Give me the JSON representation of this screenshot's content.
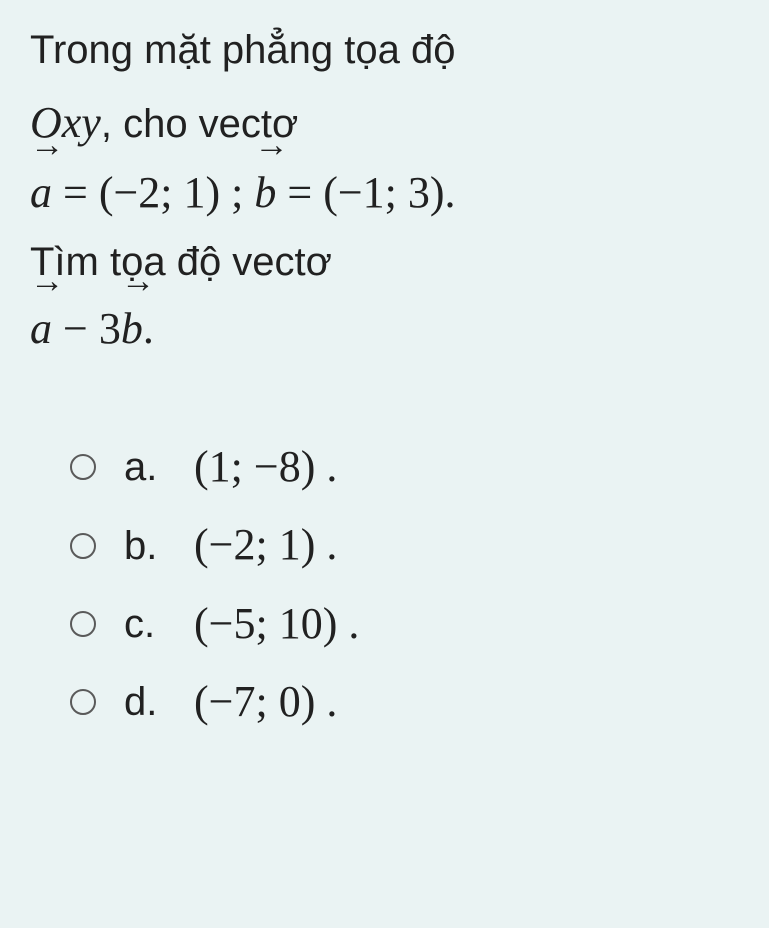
{
  "question": {
    "line1_pre": "Trong mặt phẳng tọa độ",
    "line2_oxy": "Oxy",
    "line2_post": ", cho vectơ",
    "vec_a": "a",
    "vec_b": "b",
    "eq_a_val": " = (−2; 1) ;  ",
    "eq_b_val": " = (−1; 3).",
    "line4": "Tìm tọa độ vectơ",
    "expr_minus": " − 3",
    "expr_dot": "."
  },
  "options": [
    {
      "letter": "a.",
      "value": "(1; −8) ."
    },
    {
      "letter": "b.",
      "value": "(−2; 1) ."
    },
    {
      "letter": "c.",
      "value": "(−5; 10) ."
    },
    {
      "letter": "d.",
      "value": "(−7; 0) ."
    }
  ],
  "colors": {
    "background": "#eaf3f3",
    "text": "#212121",
    "radio_border": "#5a5a5a"
  },
  "typography": {
    "body_font": "Arial, sans-serif",
    "math_font": "Times New Roman, serif",
    "question_fontsize": 40,
    "math_fontsize": 44,
    "option_fontsize": 42
  }
}
